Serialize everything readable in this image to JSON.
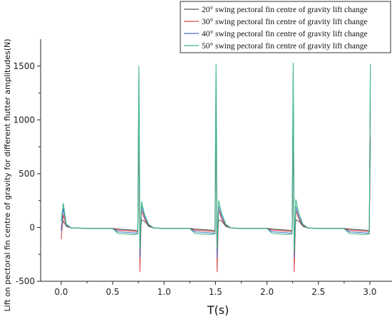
{
  "chart_data": {
    "type": "line",
    "title": "",
    "xlabel": "T(s)",
    "ylabel": "Lift on pectoral fin centre of gravity for different flutter amplitudes(N)",
    "xlim": [
      -0.2,
      3.25
    ],
    "ylim": [
      -500,
      1750
    ],
    "xticks": [
      0.0,
      0.5,
      1.0,
      1.5,
      2.0,
      2.5,
      3.0
    ],
    "xtick_labels": [
      "0.0",
      "0.5",
      "1.0",
      "1.5",
      "2.0",
      "2.5",
      "3.0"
    ],
    "yticks": [
      -500,
      0,
      500,
      1000,
      1500
    ],
    "ytick_labels": [
      "-500",
      "0",
      "500",
      "1000",
      "1500"
    ],
    "legend_position": "top-right",
    "grid": false,
    "series": [
      {
        "name": "20° swing pectoral fin centre of gravity lift change",
        "color": "#555555",
        "x": [
          0.0,
          0.02,
          0.05,
          0.1,
          0.3,
          0.5,
          0.55,
          0.7,
          0.745,
          0.755,
          0.765,
          0.78,
          0.81,
          0.85,
          0.9,
          1.0,
          1.25,
          1.3,
          1.45,
          1.495,
          1.505,
          1.515,
          1.53,
          1.56,
          1.6,
          1.65,
          1.75,
          2.0,
          2.05,
          2.2,
          2.245,
          2.255,
          2.265,
          2.28,
          2.31,
          2.35,
          2.4,
          2.5,
          2.75,
          2.8,
          2.95,
          2.995,
          3.005
        ],
        "y": [
          0,
          60,
          10,
          -5,
          -8,
          -8,
          -15,
          -25,
          -30,
          1000,
          -150,
          70,
          60,
          10,
          -5,
          -8,
          -8,
          -15,
          -25,
          -30,
          1000,
          -150,
          70,
          60,
          10,
          -5,
          -8,
          -8,
          -15,
          -25,
          -30,
          1000,
          -150,
          70,
          60,
          10,
          -5,
          -8,
          -8,
          -15,
          -25,
          -30,
          840
        ]
      },
      {
        "name": "30° swing pectoral fin centre of gravity lift change",
        "color": "#d94a4a",
        "x": [
          0.0,
          0.02,
          0.05,
          0.1,
          0.3,
          0.5,
          0.55,
          0.7,
          0.745,
          0.755,
          0.765,
          0.78,
          0.81,
          0.85,
          0.9,
          1.0,
          1.25,
          1.3,
          1.45,
          1.495,
          1.505,
          1.515,
          1.53,
          1.56,
          1.6,
          1.65,
          1.75,
          2.0,
          2.05,
          2.2,
          2.245,
          2.255,
          2.265,
          2.28,
          2.31,
          2.35,
          2.4,
          2.5,
          2.75,
          2.8,
          2.95,
          2.995,
          3.005
        ],
        "y": [
          -110,
          120,
          15,
          -5,
          -10,
          -10,
          -25,
          -35,
          -40,
          1200,
          -410,
          160,
          80,
          20,
          -5,
          -10,
          -10,
          -25,
          -35,
          -40,
          1200,
          -410,
          160,
          80,
          20,
          -5,
          -10,
          -10,
          -25,
          -35,
          -40,
          1200,
          -410,
          160,
          80,
          20,
          -5,
          -10,
          -10,
          -25,
          -35,
          -40,
          1200
        ]
      },
      {
        "name": "40° swing pectoral fin centre of gravity lift change",
        "color": "#4a6fd0",
        "x": [
          0.0,
          0.02,
          0.05,
          0.1,
          0.3,
          0.5,
          0.55,
          0.7,
          0.745,
          0.755,
          0.765,
          0.78,
          0.81,
          0.85,
          0.9,
          1.0,
          1.25,
          1.3,
          1.45,
          1.495,
          1.505,
          1.515,
          1.53,
          1.56,
          1.6,
          1.65,
          1.75,
          2.0,
          2.05,
          2.2,
          2.245,
          2.255,
          2.265,
          2.28,
          2.31,
          2.35,
          2.4,
          2.5,
          2.75,
          2.8,
          2.95,
          2.995,
          3.005
        ],
        "y": [
          -30,
          180,
          20,
          -5,
          -10,
          -10,
          -40,
          -50,
          -55,
          1400,
          -280,
          200,
          100,
          25,
          -5,
          -10,
          -10,
          -40,
          -50,
          -55,
          1400,
          -280,
          200,
          100,
          25,
          -5,
          -10,
          -10,
          -40,
          -50,
          -55,
          1400,
          -280,
          200,
          100,
          25,
          -5,
          -10,
          -10,
          -40,
          -50,
          -55,
          1400
        ]
      },
      {
        "name": "50° swing pectoral fin centre of gravity lift change",
        "color": "#3ab886",
        "x": [
          0.0,
          0.02,
          0.05,
          0.1,
          0.3,
          0.5,
          0.55,
          0.7,
          0.745,
          0.755,
          0.765,
          0.78,
          0.81,
          0.85,
          0.9,
          1.0,
          1.25,
          1.3,
          1.45,
          1.495,
          1.505,
          1.515,
          1.53,
          1.56,
          1.6,
          1.65,
          1.75,
          2.0,
          2.05,
          2.2,
          2.245,
          2.255,
          2.265,
          2.28,
          2.31,
          2.35,
          2.4,
          2.5,
          2.75,
          2.8,
          2.95,
          2.995,
          3.005
        ],
        "y": [
          60,
          225,
          30,
          -5,
          -10,
          -10,
          -55,
          -65,
          -60,
          1500,
          -200,
          240,
          120,
          30,
          -5,
          -10,
          -10,
          -55,
          -65,
          -60,
          1520,
          -200,
          250,
          130,
          30,
          -5,
          -10,
          -10,
          -55,
          -65,
          -60,
          1530,
          -220,
          260,
          130,
          30,
          -5,
          -10,
          -10,
          -55,
          -65,
          -60,
          1520
        ]
      }
    ]
  }
}
